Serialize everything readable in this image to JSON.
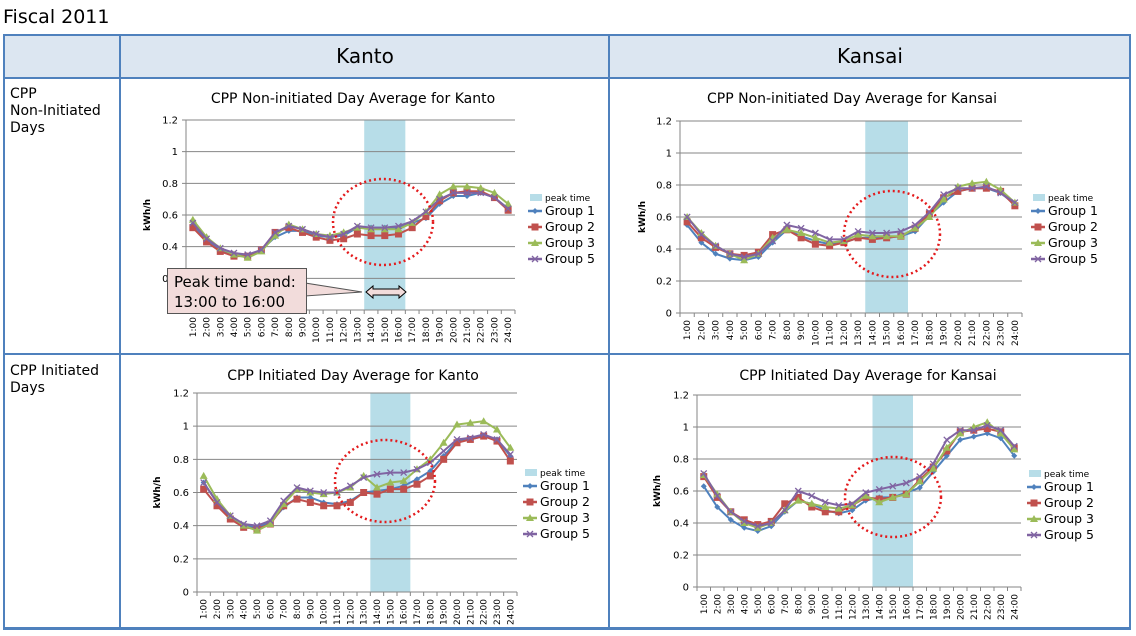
{
  "page_title": "Fiscal 2011",
  "columns": [
    "Kanto",
    "Kansai"
  ],
  "rows": [
    "CPP\nNon-Initiated\nDays",
    "CPP Initiated\nDays"
  ],
  "row_labels": [
    [
      "CPP",
      "Non-Initiated",
      "Days"
    ],
    [
      "CPP Initiated",
      "Days"
    ]
  ],
  "callout": {
    "line1": "Peak time band:",
    "line2": "13:00 to 16:00"
  },
  "colors": {
    "group1": "#4f81bd",
    "group2": "#c0504d",
    "group3": "#9bbb59",
    "group5": "#8064a2",
    "peak": "#b7dde8",
    "grid_border": "#4f81bd",
    "header_bg": "#dce6f1",
    "circle": "#e31a1c"
  },
  "chart_data": [
    {
      "id": "kanto-non",
      "type": "line",
      "title": "CPP Non-initiated Day Average for Kanto",
      "xlabel": "",
      "ylabel": "kWh/h",
      "ylim": [
        0,
        1.2
      ],
      "yticks": [
        0,
        0.2,
        0.4,
        0.6,
        0.8,
        1,
        1.2
      ],
      "x": [
        "1:00",
        "2:00",
        "3:00",
        "4:00",
        "5:00",
        "6:00",
        "7:00",
        "8:00",
        "9:00",
        "10:00",
        "11:00",
        "12:00",
        "13:00",
        "14:00",
        "15:00",
        "16:00",
        "17:00",
        "18:00",
        "19:00",
        "20:00",
        "21:00",
        "22:00",
        "23:00",
        "24:00"
      ],
      "peak_band": [
        "13:00",
        "16:00"
      ],
      "legend": [
        "peak time",
        "Group 1",
        "Group 2",
        "Group 3",
        "Group 5"
      ],
      "grid": true,
      "legend_position": "right",
      "series": [
        {
          "name": "Group 1",
          "values": [
            0.54,
            0.44,
            0.38,
            0.35,
            0.34,
            0.38,
            0.46,
            0.5,
            0.5,
            0.47,
            0.46,
            0.47,
            0.52,
            0.52,
            0.52,
            0.52,
            0.55,
            0.58,
            0.67,
            0.72,
            0.72,
            0.74,
            0.71,
            0.64
          ]
        },
        {
          "name": "Group 2",
          "values": [
            0.52,
            0.43,
            0.37,
            0.34,
            0.34,
            0.38,
            0.49,
            0.52,
            0.49,
            0.46,
            0.44,
            0.45,
            0.48,
            0.47,
            0.47,
            0.48,
            0.52,
            0.59,
            0.69,
            0.74,
            0.75,
            0.75,
            0.71,
            0.63
          ]
        },
        {
          "name": "Group 3",
          "values": [
            0.57,
            0.46,
            0.39,
            0.35,
            0.33,
            0.37,
            0.47,
            0.54,
            0.51,
            0.48,
            0.47,
            0.49,
            0.52,
            0.51,
            0.51,
            0.51,
            0.55,
            0.62,
            0.73,
            0.78,
            0.78,
            0.77,
            0.74,
            0.67
          ]
        },
        {
          "name": "Group 5",
          "values": [
            0.55,
            0.45,
            0.39,
            0.36,
            0.35,
            0.38,
            0.49,
            0.53,
            0.51,
            0.48,
            0.46,
            0.48,
            0.53,
            0.52,
            0.52,
            0.53,
            0.56,
            0.62,
            0.7,
            0.74,
            0.74,
            0.74,
            0.71,
            0.64
          ]
        }
      ]
    },
    {
      "id": "kansai-non",
      "type": "line",
      "title": "CPP Non-initiated Day Average for Kansai",
      "xlabel": "",
      "ylabel": "kWh/h",
      "ylim": [
        0,
        1.2
      ],
      "yticks": [
        0,
        0.2,
        0.4,
        0.6,
        0.8,
        1,
        1.2
      ],
      "x": [
        "1:00",
        "2:00",
        "3:00",
        "4:00",
        "5:00",
        "6:00",
        "7:00",
        "8:00",
        "9:00",
        "10:00",
        "11:00",
        "12:00",
        "13:00",
        "14:00",
        "15:00",
        "16:00",
        "17:00",
        "18:00",
        "19:00",
        "20:00",
        "21:00",
        "22:00",
        "23:00",
        "24:00"
      ],
      "peak_band": [
        "13:00",
        "16:00"
      ],
      "legend": [
        "peak time",
        "Group 1",
        "Group 2",
        "Group 3",
        "Group 5"
      ],
      "grid": true,
      "legend_position": "right",
      "series": [
        {
          "name": "Group 1",
          "values": [
            0.55,
            0.44,
            0.37,
            0.34,
            0.33,
            0.35,
            0.44,
            0.52,
            0.48,
            0.45,
            0.43,
            0.44,
            0.47,
            0.47,
            0.47,
            0.48,
            0.51,
            0.61,
            0.69,
            0.76,
            0.78,
            0.78,
            0.75,
            0.68
          ]
        },
        {
          "name": "Group 2",
          "values": [
            0.57,
            0.47,
            0.41,
            0.37,
            0.36,
            0.38,
            0.49,
            0.52,
            0.47,
            0.43,
            0.42,
            0.44,
            0.47,
            0.46,
            0.47,
            0.48,
            0.53,
            0.62,
            0.72,
            0.76,
            0.78,
            0.78,
            0.76,
            0.67
          ]
        },
        {
          "name": "Group 3",
          "values": [
            0.6,
            0.5,
            0.42,
            0.37,
            0.33,
            0.37,
            0.47,
            0.52,
            0.5,
            0.47,
            0.44,
            0.45,
            0.49,
            0.48,
            0.48,
            0.48,
            0.53,
            0.6,
            0.71,
            0.79,
            0.81,
            0.82,
            0.77,
            0.69
          ]
        },
        {
          "name": "Group 5",
          "values": [
            0.6,
            0.49,
            0.42,
            0.37,
            0.35,
            0.37,
            0.45,
            0.55,
            0.53,
            0.5,
            0.46,
            0.46,
            0.51,
            0.5,
            0.5,
            0.51,
            0.55,
            0.63,
            0.74,
            0.78,
            0.78,
            0.79,
            0.75,
            0.69
          ]
        }
      ]
    },
    {
      "id": "kanto-init",
      "type": "line",
      "title": "CPP Initiated Day Average for Kanto",
      "xlabel": "",
      "ylabel": "kWh/h",
      "ylim": [
        0,
        1.2
      ],
      "yticks": [
        0,
        0.2,
        0.4,
        0.6,
        0.8,
        1,
        1.2
      ],
      "x": [
        "1:00",
        "2:00",
        "3:00",
        "4:00",
        "5:00",
        "6:00",
        "7:00",
        "8:00",
        "9:00",
        "10:00",
        "11:00",
        "12:00",
        "13:00",
        "14:00",
        "15:00",
        "16:00",
        "17:00",
        "18:00",
        "19:00",
        "20:00",
        "21:00",
        "22:00",
        "23:00",
        "24:00"
      ],
      "peak_band": [
        "13:00",
        "16:00"
      ],
      "legend": [
        "peak time",
        "Group 1",
        "Group 2",
        "Group 3",
        "Group 5"
      ],
      "grid": true,
      "legend_position": "right",
      "series": [
        {
          "name": "Group 1",
          "values": [
            0.66,
            0.54,
            0.45,
            0.4,
            0.39,
            0.42,
            0.51,
            0.57,
            0.57,
            0.54,
            0.53,
            0.55,
            0.6,
            0.61,
            0.62,
            0.64,
            0.68,
            0.73,
            0.82,
            0.91,
            0.92,
            0.94,
            0.92,
            0.82
          ]
        },
        {
          "name": "Group 2",
          "values": [
            0.62,
            0.52,
            0.44,
            0.39,
            0.38,
            0.41,
            0.52,
            0.56,
            0.54,
            0.52,
            0.52,
            0.54,
            0.6,
            0.59,
            0.62,
            0.62,
            0.65,
            0.7,
            0.8,
            0.9,
            0.92,
            0.94,
            0.91,
            0.79
          ]
        },
        {
          "name": "Group 3",
          "values": [
            0.7,
            0.56,
            0.46,
            0.4,
            0.37,
            0.41,
            0.53,
            0.62,
            0.6,
            0.59,
            0.6,
            0.63,
            0.7,
            0.63,
            0.66,
            0.67,
            0.74,
            0.8,
            0.9,
            1.01,
            1.02,
            1.03,
            0.98,
            0.87
          ]
        },
        {
          "name": "Group 5",
          "values": [
            0.66,
            0.54,
            0.46,
            0.41,
            0.4,
            0.43,
            0.55,
            0.63,
            0.61,
            0.6,
            0.6,
            0.64,
            0.69,
            0.71,
            0.72,
            0.72,
            0.74,
            0.78,
            0.85,
            0.92,
            0.93,
            0.95,
            0.92,
            0.83
          ]
        }
      ]
    },
    {
      "id": "kansai-init",
      "type": "line",
      "title": "CPP Initiated Day Average for Kansai",
      "xlabel": "",
      "ylabel": "kWh/h",
      "ylim": [
        0,
        1.2
      ],
      "yticks": [
        0,
        0.2,
        0.4,
        0.6,
        0.8,
        1,
        1.2
      ],
      "x": [
        "1:00",
        "2:00",
        "3:00",
        "4:00",
        "5:00",
        "6:00",
        "7:00",
        "8:00",
        "9:00",
        "10:00",
        "11:00",
        "12:00",
        "13:00",
        "14:00",
        "15:00",
        "16:00",
        "17:00",
        "18:00",
        "19:00",
        "20:00",
        "21:00",
        "22:00",
        "23:00",
        "24:00"
      ],
      "peak_band": [
        "13:00",
        "16:00"
      ],
      "legend": [
        "peak time",
        "Group 1",
        "Group 2",
        "Group 3",
        "Group 5"
      ],
      "grid": true,
      "legend_position": "right",
      "series": [
        {
          "name": "Group 1",
          "values": [
            0.63,
            0.5,
            0.42,
            0.37,
            0.35,
            0.38,
            0.47,
            0.54,
            0.52,
            0.48,
            0.46,
            0.48,
            0.54,
            0.56,
            0.56,
            0.59,
            0.62,
            0.72,
            0.82,
            0.92,
            0.94,
            0.96,
            0.93,
            0.82
          ]
        },
        {
          "name": "Group 2",
          "values": [
            0.69,
            0.56,
            0.47,
            0.42,
            0.39,
            0.41,
            0.52,
            0.56,
            0.5,
            0.47,
            0.47,
            0.51,
            0.56,
            0.55,
            0.56,
            0.58,
            0.67,
            0.75,
            0.85,
            0.97,
            0.98,
            0.99,
            0.97,
            0.87
          ]
        },
        {
          "name": "Group 3",
          "values": [
            0.7,
            0.58,
            0.47,
            0.4,
            0.37,
            0.4,
            0.48,
            0.54,
            0.52,
            0.5,
            0.49,
            0.51,
            0.57,
            0.53,
            0.56,
            0.58,
            0.66,
            0.74,
            0.87,
            0.96,
            1.0,
            1.03,
            0.96,
            0.86
          ]
        },
        {
          "name": "Group 5",
          "values": [
            0.71,
            0.57,
            0.47,
            0.41,
            0.38,
            0.4,
            0.48,
            0.6,
            0.57,
            0.53,
            0.51,
            0.52,
            0.59,
            0.61,
            0.63,
            0.65,
            0.69,
            0.77,
            0.92,
            0.98,
            0.98,
            1.01,
            0.98,
            0.88
          ]
        }
      ]
    }
  ]
}
